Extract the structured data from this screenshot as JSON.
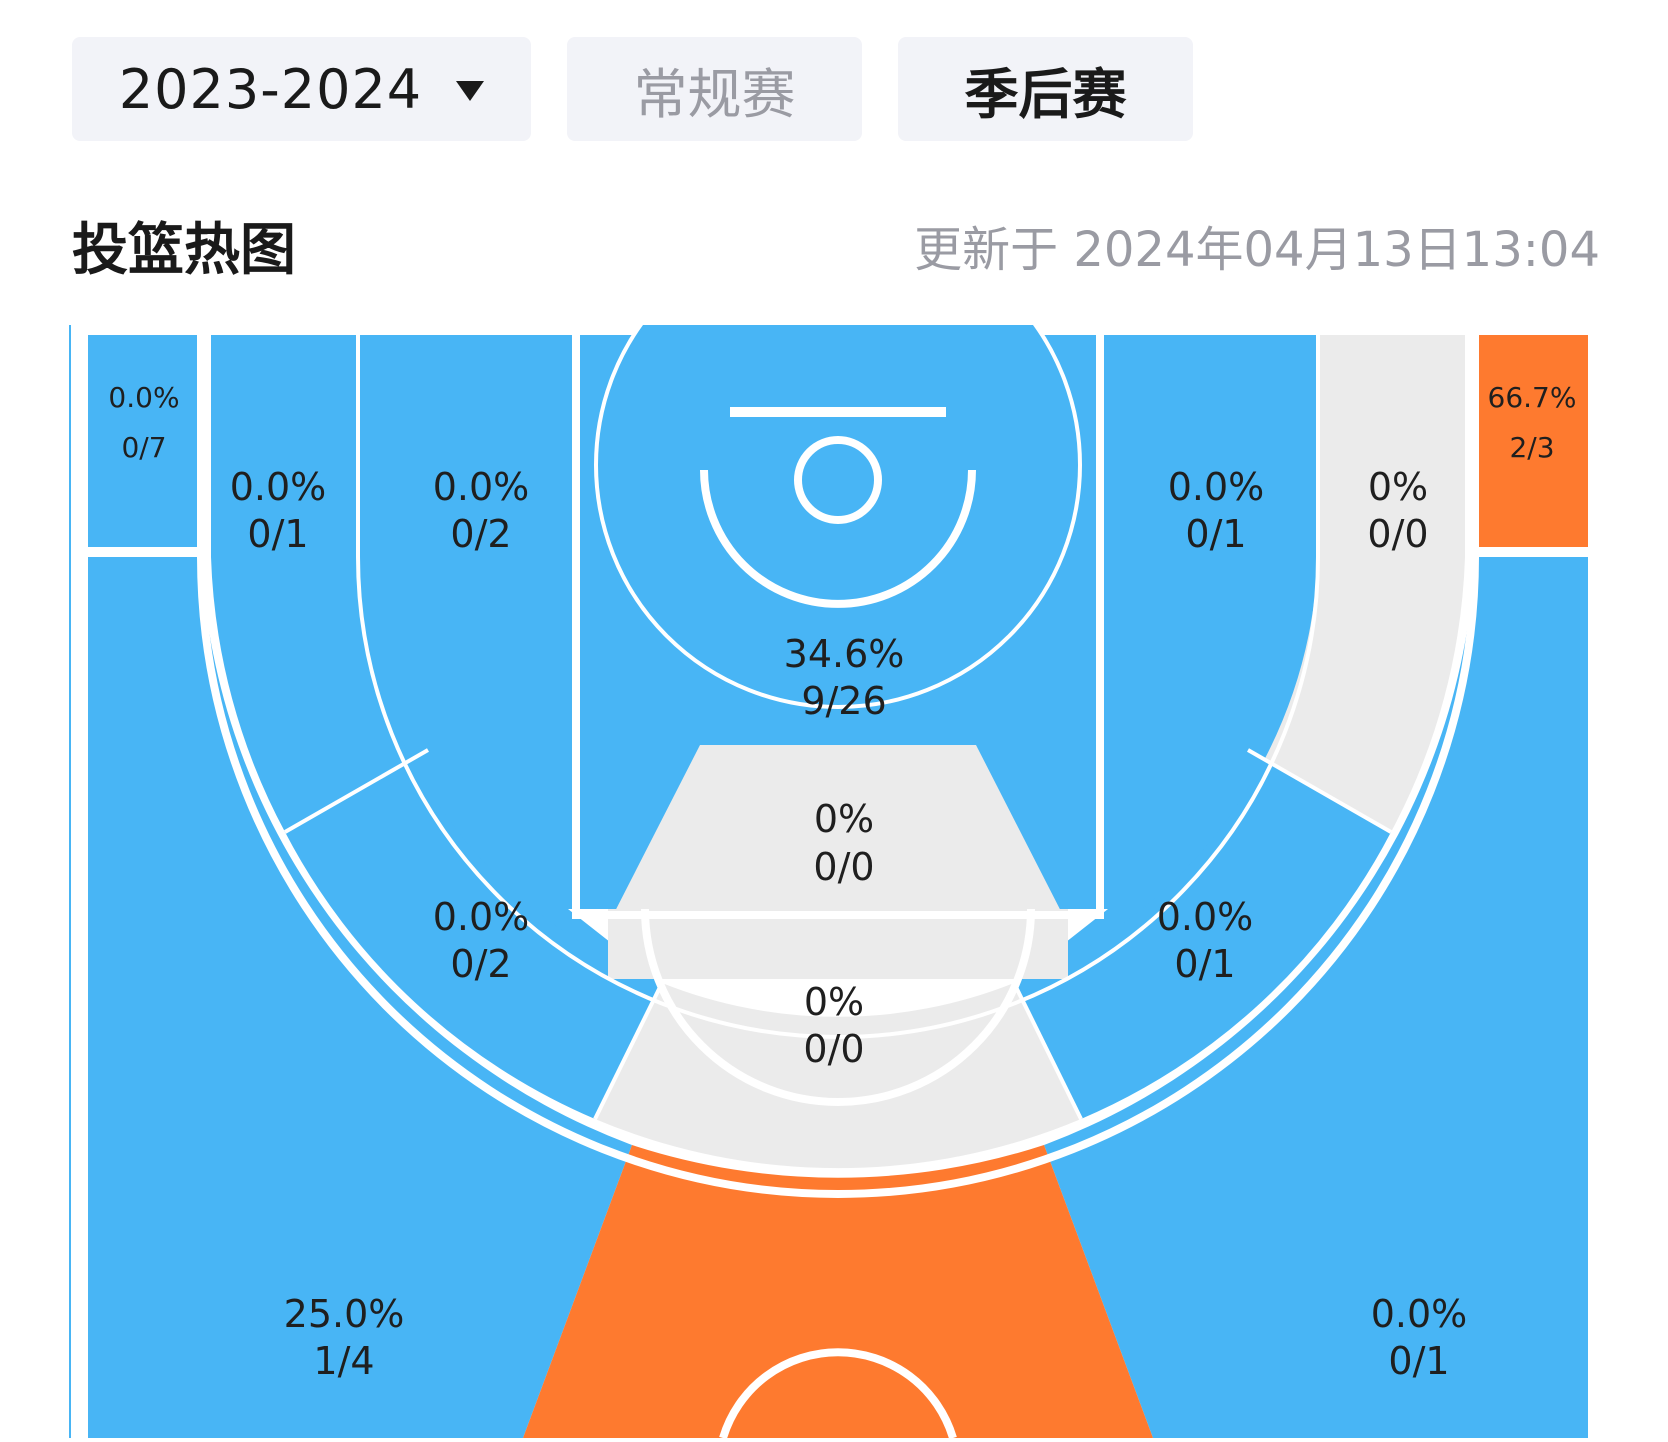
{
  "filters": {
    "season": "2023-2024",
    "tabs": [
      {
        "label": "常规赛",
        "active": false
      },
      {
        "label": "季后赛",
        "active": true
      }
    ]
  },
  "section": {
    "title": "投篮热图",
    "updated": "更新于 2024年04月13日13:04"
  },
  "colors": {
    "cold": "#48b5f5",
    "neutral": "#ebebeb",
    "hot": "#fe7a2f",
    "line": "#ffffff"
  },
  "zones": {
    "left_corner_three": {
      "pct": "0.0%",
      "made_att": "0/7"
    },
    "right_corner_three": {
      "pct": "66.7%",
      "made_att": "2/3"
    },
    "left_baseline_long2": {
      "pct": "0.0%",
      "made_att": "0/1"
    },
    "left_short_mid": {
      "pct": "0.0%",
      "made_att": "0/2"
    },
    "restricted_area": {
      "pct": "34.6%",
      "made_att": "9/26"
    },
    "right_short_mid": {
      "pct": "0.0%",
      "made_att": "0/1"
    },
    "right_baseline_long2": {
      "pct": "0%",
      "made_att": "0/0"
    },
    "paint_non_ra": {
      "pct": "0%",
      "made_att": "0/0"
    },
    "left_wing_mid": {
      "pct": "0.0%",
      "made_att": "0/2"
    },
    "right_wing_mid": {
      "pct": "0.0%",
      "made_att": "0/1"
    },
    "top_key_mid": {
      "pct": "0%",
      "made_att": "0/0"
    },
    "left_wing_three": {
      "pct": "25.0%",
      "made_att": "1/4"
    },
    "right_wing_three": {
      "pct": "0.0%",
      "made_att": "0/1"
    }
  }
}
